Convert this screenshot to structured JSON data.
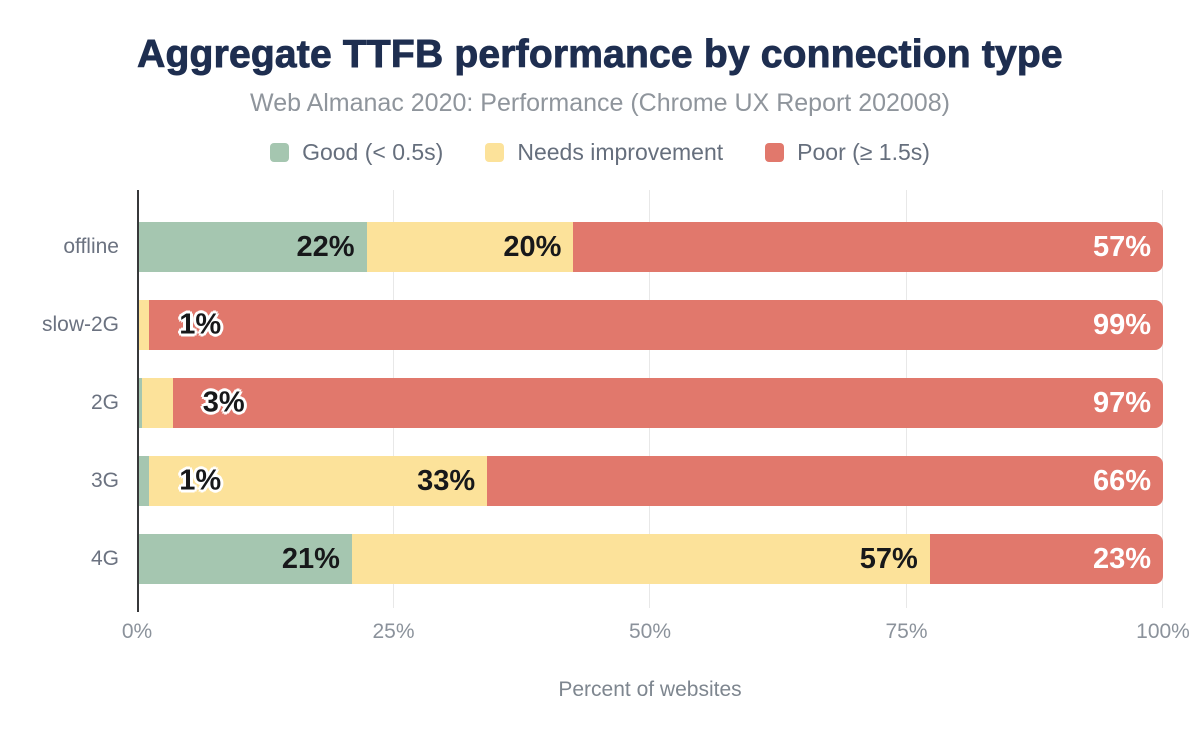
{
  "colors": {
    "title_text": "#1e2e50",
    "subtitle_text": "#8f959c",
    "legend_text": "#666f7d",
    "category_text": "#6b7280",
    "tick_text": "#8b929b",
    "axis_title_text": "#7e868f",
    "axis_line": "#37383a",
    "gridline": "#e8e8e8",
    "good": "#a5c6b0",
    "needs_improvement": "#fce29a",
    "poor": "#e1786c",
    "label_dark": "#17181a",
    "label_light": "#ffffff"
  },
  "chart_data": {
    "type": "bar",
    "variant": "horizontal-stacked",
    "title": "Aggregate TTFB performance by connection type",
    "subtitle": "Web Almanac 2020: Performance (Chrome UX Report 202008)",
    "xlabel": "Percent of websites",
    "xlim": [
      0,
      100
    ],
    "grid": "vertical",
    "legend_position": "top-center",
    "legend": [
      {
        "label": "Good (< 0.5s)",
        "color_key": "good"
      },
      {
        "label": "Needs improvement",
        "color_key": "needs_improvement"
      },
      {
        "label": "Poor (≥ 1.5s)",
        "color_key": "poor"
      }
    ],
    "categories": [
      "offline",
      "slow-2G",
      "2G",
      "3G",
      "4G"
    ],
    "series": [
      {
        "name": "Good (< 0.5s)",
        "color_key": "good",
        "values": [
          22,
          0,
          0.3,
          1,
          21
        ]
      },
      {
        "name": "Needs improvement",
        "color_key": "needs_improvement",
        "values": [
          20,
          1,
          3,
          33,
          57
        ]
      },
      {
        "name": "Poor (≥ 1.5s)",
        "color_key": "poor",
        "values": [
          57,
          99,
          97,
          66,
          23
        ]
      }
    ],
    "xticks": [
      {
        "label": "0%",
        "value": 0
      },
      {
        "label": "25%",
        "value": 25
      },
      {
        "label": "50%",
        "value": 50
      },
      {
        "label": "75%",
        "value": 75
      },
      {
        "label": "100%",
        "value": 100
      }
    ],
    "rows": [
      {
        "category": "offline",
        "segments": [
          {
            "series": "good",
            "value": 22,
            "label": "22%",
            "label_placement": "inside",
            "label_style": "dark"
          },
          {
            "series": "needs_improvement",
            "value": 20,
            "label": "20%",
            "label_placement": "inside",
            "label_style": "dark"
          },
          {
            "series": "poor",
            "value": 57,
            "label": "57%",
            "label_placement": "inside",
            "label_style": "light"
          }
        ]
      },
      {
        "category": "slow-2G",
        "segments": [
          {
            "series": "good",
            "value": 0,
            "label": "",
            "label_placement": "none",
            "label_style": "dark"
          },
          {
            "series": "needs_improvement",
            "value": 1,
            "label": "1%",
            "label_placement": "outside",
            "label_style": "dark"
          },
          {
            "series": "poor",
            "value": 99,
            "label": "99%",
            "label_placement": "inside",
            "label_style": "light"
          }
        ]
      },
      {
        "category": "2G",
        "segments": [
          {
            "series": "good",
            "value": 0.3,
            "label": "",
            "label_placement": "none",
            "label_style": "dark"
          },
          {
            "series": "needs_improvement",
            "value": 3,
            "label": "3%",
            "label_placement": "outside",
            "label_style": "dark"
          },
          {
            "series": "poor",
            "value": 97,
            "label": "97%",
            "label_placement": "inside",
            "label_style": "light"
          }
        ]
      },
      {
        "category": "3G",
        "segments": [
          {
            "series": "good",
            "value": 1,
            "label": "1%",
            "label_placement": "outside",
            "label_style": "dark"
          },
          {
            "series": "needs_improvement",
            "value": 33,
            "label": "33%",
            "label_placement": "inside",
            "label_style": "dark"
          },
          {
            "series": "poor",
            "value": 66,
            "label": "66%",
            "label_placement": "inside",
            "label_style": "light"
          }
        ]
      },
      {
        "category": "4G",
        "segments": [
          {
            "series": "good",
            "value": 21,
            "label": "21%",
            "label_placement": "inside",
            "label_style": "dark"
          },
          {
            "series": "needs_improvement",
            "value": 57,
            "label": "57%",
            "label_placement": "inside",
            "label_style": "dark"
          },
          {
            "series": "poor",
            "value": 23,
            "label": "23%",
            "label_placement": "inside",
            "label_style": "light"
          }
        ]
      }
    ]
  }
}
